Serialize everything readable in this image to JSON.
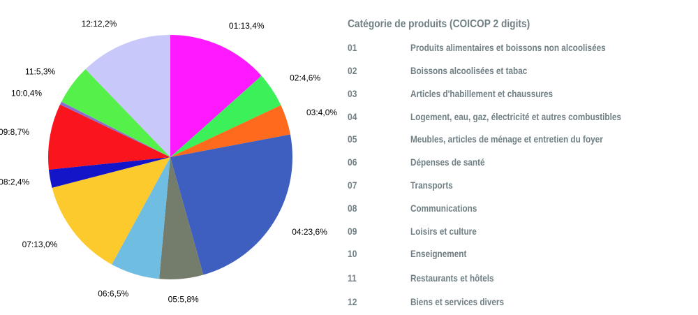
{
  "chart_data": {
    "type": "pie",
    "slices": [
      {
        "label": "01:13,4%",
        "value": 13.4,
        "color": "#ff19ff"
      },
      {
        "label": "02:4,6%",
        "value": 4.6,
        "color": "#3cf05a"
      },
      {
        "label": "03:4,0%",
        "value": 4.0,
        "color": "#ff6a1c"
      },
      {
        "label": "04:23,6%",
        "value": 23.6,
        "color": "#3f5fc0"
      },
      {
        "label": "05:5,8%",
        "value": 5.8,
        "color": "#747c6b"
      },
      {
        "label": "06:6,5%",
        "value": 6.5,
        "color": "#6fbde0"
      },
      {
        "label": "07:13,0%",
        "value": 13.0,
        "color": "#fdca2e"
      },
      {
        "label": "08:2,4%",
        "value": 2.4,
        "color": "#1414c8"
      },
      {
        "label": "09:8,7%",
        "value": 8.7,
        "color": "#fa141e"
      },
      {
        "label": "10:0,4%",
        "value": 0.4,
        "color": "#8a6ccf"
      },
      {
        "label": "11:5,3%",
        "value": 5.3,
        "color": "#55f04a"
      },
      {
        "label": "12:12,2%",
        "value": 12.2,
        "color": "#c8c8fa"
      }
    ]
  },
  "legend": {
    "title": "Catégorie de produits (COICOP 2 digits)",
    "items": [
      {
        "code": "01",
        "name": "Produits alimentaires et boissons non alcoolisées"
      },
      {
        "code": "02",
        "name": "Boissons alcoolisées et tabac"
      },
      {
        "code": "03",
        "name": "Articles d'habillement et chaussures"
      },
      {
        "code": "04",
        "name": "Logement, eau, gaz, électricité et autres combustibles"
      },
      {
        "code": "05",
        "name": "Meubles, articles de ménage et entretien du foyer"
      },
      {
        "code": "06",
        "name": "Dépenses de santé"
      },
      {
        "code": "07",
        "name": "Transports"
      },
      {
        "code": "08",
        "name": "Communications"
      },
      {
        "code": "09",
        "name": "Loisirs et culture"
      },
      {
        "code": "10",
        "name": "Enseignement"
      },
      {
        "code": "11",
        "name": "Restaurants et hôtels"
      },
      {
        "code": "12",
        "name": "Biens et services divers"
      }
    ]
  }
}
